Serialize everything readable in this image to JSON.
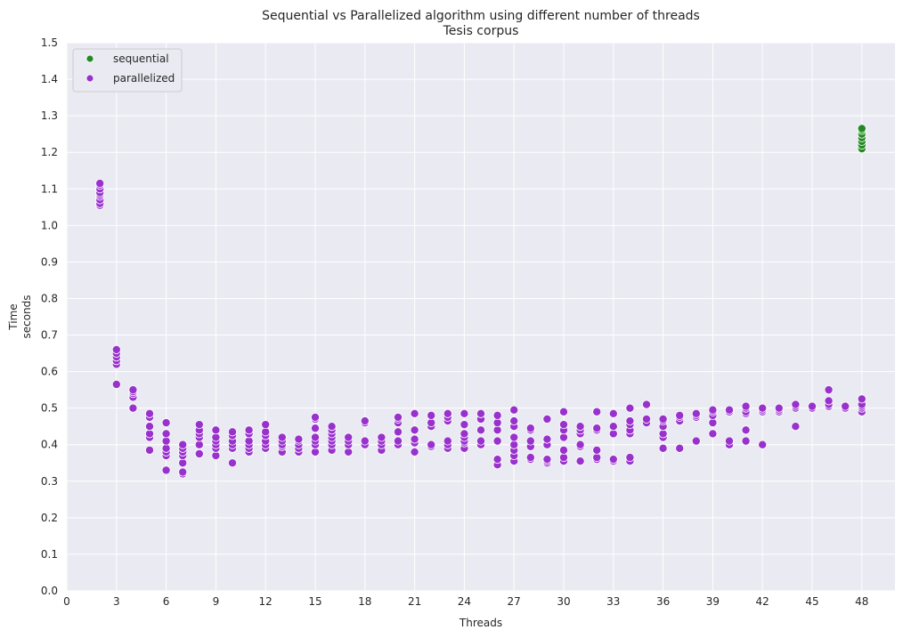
{
  "chart_data": {
    "type": "scatter",
    "title": "Sequential vs Parallelized algorithm using different number of threads",
    "subtitle": "Tesis corpus",
    "xlabel": "Threads",
    "ylabel_line1": "Time",
    "ylabel_line2": "seconds",
    "xlim": [
      0,
      50
    ],
    "ylim": [
      0,
      1.5
    ],
    "x_ticks": [
      0,
      3,
      6,
      9,
      12,
      15,
      18,
      21,
      24,
      27,
      30,
      33,
      36,
      39,
      42,
      45,
      48
    ],
    "x_tick_labels": [
      "0",
      "3",
      "6",
      "9",
      "12",
      "15",
      "18",
      "21",
      "24",
      "27",
      "30",
      "33",
      "36",
      "39",
      "42",
      "45",
      "48"
    ],
    "y_ticks": [
      0,
      0.1,
      0.2,
      0.3,
      0.4,
      0.5,
      0.6,
      0.7,
      0.8,
      0.9,
      1.0,
      1.1,
      1.2,
      1.3,
      1.4,
      1.5
    ],
    "y_tick_labels": [
      "0.0",
      "0.1",
      "0.2",
      "0.3",
      "0.4",
      "0.5",
      "0.6",
      "0.7",
      "0.8",
      "0.9",
      "1.0",
      "1.1",
      "1.2",
      "1.3",
      "1.4",
      "1.5"
    ],
    "grid": true,
    "background_color": "#eaeaf2",
    "grid_color": "#ffffff",
    "legend_position": "top-left",
    "series": [
      {
        "name": "sequential",
        "color": "#228b22",
        "points": [
          [
            48,
            1.21
          ],
          [
            48,
            1.22
          ],
          [
            48,
            1.23
          ],
          [
            48,
            1.24
          ],
          [
            48,
            1.25
          ],
          [
            48,
            1.26
          ],
          [
            48,
            1.265
          ]
        ]
      },
      {
        "name": "parallelized",
        "color": "#9932cc",
        "points": [
          [
            2,
            1.055
          ],
          [
            2,
            1.06
          ],
          [
            2,
            1.07
          ],
          [
            2,
            1.08
          ],
          [
            2,
            1.085
          ],
          [
            2,
            1.09
          ],
          [
            2,
            1.1
          ],
          [
            2,
            1.11
          ],
          [
            2,
            1.115
          ],
          [
            3,
            0.565
          ],
          [
            3,
            0.62
          ],
          [
            3,
            0.63
          ],
          [
            3,
            0.64
          ],
          [
            3,
            0.65
          ],
          [
            3,
            0.66
          ],
          [
            4,
            0.5
          ],
          [
            4,
            0.53
          ],
          [
            4,
            0.54
          ],
          [
            4,
            0.545
          ],
          [
            4,
            0.55
          ],
          [
            5,
            0.385
          ],
          [
            5,
            0.42
          ],
          [
            5,
            0.43
          ],
          [
            5,
            0.45
          ],
          [
            5,
            0.475
          ],
          [
            5,
            0.485
          ],
          [
            6,
            0.33
          ],
          [
            6,
            0.37
          ],
          [
            6,
            0.38
          ],
          [
            6,
            0.39
          ],
          [
            6,
            0.41
          ],
          [
            6,
            0.43
          ],
          [
            6,
            0.46
          ],
          [
            7,
            0.32
          ],
          [
            7,
            0.325
          ],
          [
            7,
            0.35
          ],
          [
            7,
            0.37
          ],
          [
            7,
            0.38
          ],
          [
            7,
            0.39
          ],
          [
            7,
            0.4
          ],
          [
            8,
            0.375
          ],
          [
            8,
            0.4
          ],
          [
            8,
            0.42
          ],
          [
            8,
            0.43
          ],
          [
            8,
            0.44
          ],
          [
            8,
            0.455
          ],
          [
            9,
            0.37
          ],
          [
            9,
            0.39
          ],
          [
            9,
            0.4
          ],
          [
            9,
            0.41
          ],
          [
            9,
            0.42
          ],
          [
            9,
            0.44
          ],
          [
            10,
            0.35
          ],
          [
            10,
            0.39
          ],
          [
            10,
            0.4
          ],
          [
            10,
            0.41
          ],
          [
            10,
            0.425
          ],
          [
            10,
            0.435
          ],
          [
            11,
            0.38
          ],
          [
            11,
            0.39
          ],
          [
            11,
            0.4
          ],
          [
            11,
            0.41
          ],
          [
            11,
            0.43
          ],
          [
            11,
            0.44
          ],
          [
            12,
            0.39
          ],
          [
            12,
            0.4
          ],
          [
            12,
            0.41
          ],
          [
            12,
            0.425
          ],
          [
            12,
            0.435
          ],
          [
            12,
            0.455
          ],
          [
            13,
            0.38
          ],
          [
            13,
            0.395
          ],
          [
            13,
            0.4
          ],
          [
            13,
            0.41
          ],
          [
            13,
            0.42
          ],
          [
            14,
            0.38
          ],
          [
            14,
            0.39
          ],
          [
            14,
            0.4
          ],
          [
            14,
            0.41
          ],
          [
            14,
            0.415
          ],
          [
            15,
            0.38
          ],
          [
            15,
            0.4
          ],
          [
            15,
            0.41
          ],
          [
            15,
            0.42
          ],
          [
            15,
            0.445
          ],
          [
            15,
            0.47
          ],
          [
            15,
            0.475
          ],
          [
            16,
            0.385
          ],
          [
            16,
            0.4
          ],
          [
            16,
            0.41
          ],
          [
            16,
            0.42
          ],
          [
            16,
            0.43
          ],
          [
            16,
            0.44
          ],
          [
            16,
            0.45
          ],
          [
            17,
            0.38
          ],
          [
            17,
            0.4
          ],
          [
            17,
            0.41
          ],
          [
            17,
            0.42
          ],
          [
            18,
            0.4
          ],
          [
            18,
            0.41
          ],
          [
            18,
            0.46
          ],
          [
            18,
            0.465
          ],
          [
            19,
            0.385
          ],
          [
            19,
            0.4
          ],
          [
            19,
            0.41
          ],
          [
            19,
            0.42
          ],
          [
            20,
            0.4
          ],
          [
            20,
            0.41
          ],
          [
            20,
            0.435
          ],
          [
            20,
            0.46
          ],
          [
            20,
            0.47
          ],
          [
            20,
            0.475
          ],
          [
            21,
            0.38
          ],
          [
            21,
            0.405
          ],
          [
            21,
            0.415
          ],
          [
            21,
            0.44
          ],
          [
            21,
            0.485
          ],
          [
            22,
            0.395
          ],
          [
            22,
            0.4
          ],
          [
            22,
            0.45
          ],
          [
            22,
            0.46
          ],
          [
            22,
            0.48
          ],
          [
            23,
            0.39
          ],
          [
            23,
            0.4
          ],
          [
            23,
            0.41
          ],
          [
            23,
            0.465
          ],
          [
            23,
            0.475
          ],
          [
            23,
            0.485
          ],
          [
            24,
            0.39
          ],
          [
            24,
            0.405
          ],
          [
            24,
            0.41
          ],
          [
            24,
            0.42
          ],
          [
            24,
            0.43
          ],
          [
            24,
            0.455
          ],
          [
            24,
            0.485
          ],
          [
            25,
            0.4
          ],
          [
            25,
            0.41
          ],
          [
            25,
            0.44
          ],
          [
            25,
            0.47
          ],
          [
            25,
            0.485
          ],
          [
            26,
            0.345
          ],
          [
            26,
            0.36
          ],
          [
            26,
            0.41
          ],
          [
            26,
            0.44
          ],
          [
            26,
            0.46
          ],
          [
            26,
            0.48
          ],
          [
            27,
            0.355
          ],
          [
            27,
            0.37
          ],
          [
            27,
            0.385
          ],
          [
            27,
            0.4
          ],
          [
            27,
            0.42
          ],
          [
            27,
            0.45
          ],
          [
            27,
            0.465
          ],
          [
            27,
            0.495
          ],
          [
            28,
            0.36
          ],
          [
            28,
            0.365
          ],
          [
            28,
            0.395
          ],
          [
            28,
            0.41
          ],
          [
            28,
            0.44
          ],
          [
            28,
            0.445
          ],
          [
            29,
            0.35
          ],
          [
            29,
            0.355
          ],
          [
            29,
            0.36
          ],
          [
            29,
            0.4
          ],
          [
            29,
            0.415
          ],
          [
            29,
            0.47
          ],
          [
            30,
            0.355
          ],
          [
            30,
            0.365
          ],
          [
            30,
            0.385
          ],
          [
            30,
            0.42
          ],
          [
            30,
            0.44
          ],
          [
            30,
            0.455
          ],
          [
            30,
            0.49
          ],
          [
            31,
            0.355
          ],
          [
            31,
            0.395
          ],
          [
            31,
            0.4
          ],
          [
            31,
            0.43
          ],
          [
            31,
            0.44
          ],
          [
            31,
            0.45
          ],
          [
            32,
            0.36
          ],
          [
            32,
            0.365
          ],
          [
            32,
            0.385
          ],
          [
            32,
            0.44
          ],
          [
            32,
            0.445
          ],
          [
            32,
            0.49
          ],
          [
            33,
            0.355
          ],
          [
            33,
            0.36
          ],
          [
            33,
            0.43
          ],
          [
            33,
            0.45
          ],
          [
            33,
            0.485
          ],
          [
            34,
            0.355
          ],
          [
            34,
            0.365
          ],
          [
            34,
            0.43
          ],
          [
            34,
            0.44
          ],
          [
            34,
            0.455
          ],
          [
            34,
            0.465
          ],
          [
            34,
            0.5
          ],
          [
            35,
            0.46
          ],
          [
            35,
            0.47
          ],
          [
            35,
            0.51
          ],
          [
            36,
            0.39
          ],
          [
            36,
            0.42
          ],
          [
            36,
            0.43
          ],
          [
            36,
            0.45
          ],
          [
            36,
            0.465
          ],
          [
            36,
            0.47
          ],
          [
            37,
            0.39
          ],
          [
            37,
            0.465
          ],
          [
            37,
            0.475
          ],
          [
            37,
            0.48
          ],
          [
            38,
            0.41
          ],
          [
            38,
            0.475
          ],
          [
            38,
            0.48
          ],
          [
            38,
            0.485
          ],
          [
            39,
            0.43
          ],
          [
            39,
            0.46
          ],
          [
            39,
            0.48
          ],
          [
            39,
            0.49
          ],
          [
            39,
            0.495
          ],
          [
            40,
            0.4
          ],
          [
            40,
            0.41
          ],
          [
            40,
            0.49
          ],
          [
            40,
            0.495
          ],
          [
            41,
            0.41
          ],
          [
            41,
            0.44
          ],
          [
            41,
            0.485
          ],
          [
            41,
            0.49
          ],
          [
            41,
            0.5
          ],
          [
            41,
            0.505
          ],
          [
            42,
            0.4
          ],
          [
            42,
            0.49
          ],
          [
            42,
            0.495
          ],
          [
            42,
            0.5
          ],
          [
            43,
            0.49
          ],
          [
            43,
            0.495
          ],
          [
            43,
            0.5
          ],
          [
            44,
            0.45
          ],
          [
            44,
            0.5
          ],
          [
            44,
            0.505
          ],
          [
            44,
            0.51
          ],
          [
            45,
            0.5
          ],
          [
            45,
            0.505
          ],
          [
            46,
            0.505
          ],
          [
            46,
            0.51
          ],
          [
            46,
            0.52
          ],
          [
            46,
            0.55
          ],
          [
            47,
            0.5
          ],
          [
            47,
            0.505
          ],
          [
            48,
            0.49
          ],
          [
            48,
            0.5
          ],
          [
            48,
            0.505
          ],
          [
            48,
            0.51
          ],
          [
            48,
            0.525
          ]
        ]
      }
    ]
  }
}
